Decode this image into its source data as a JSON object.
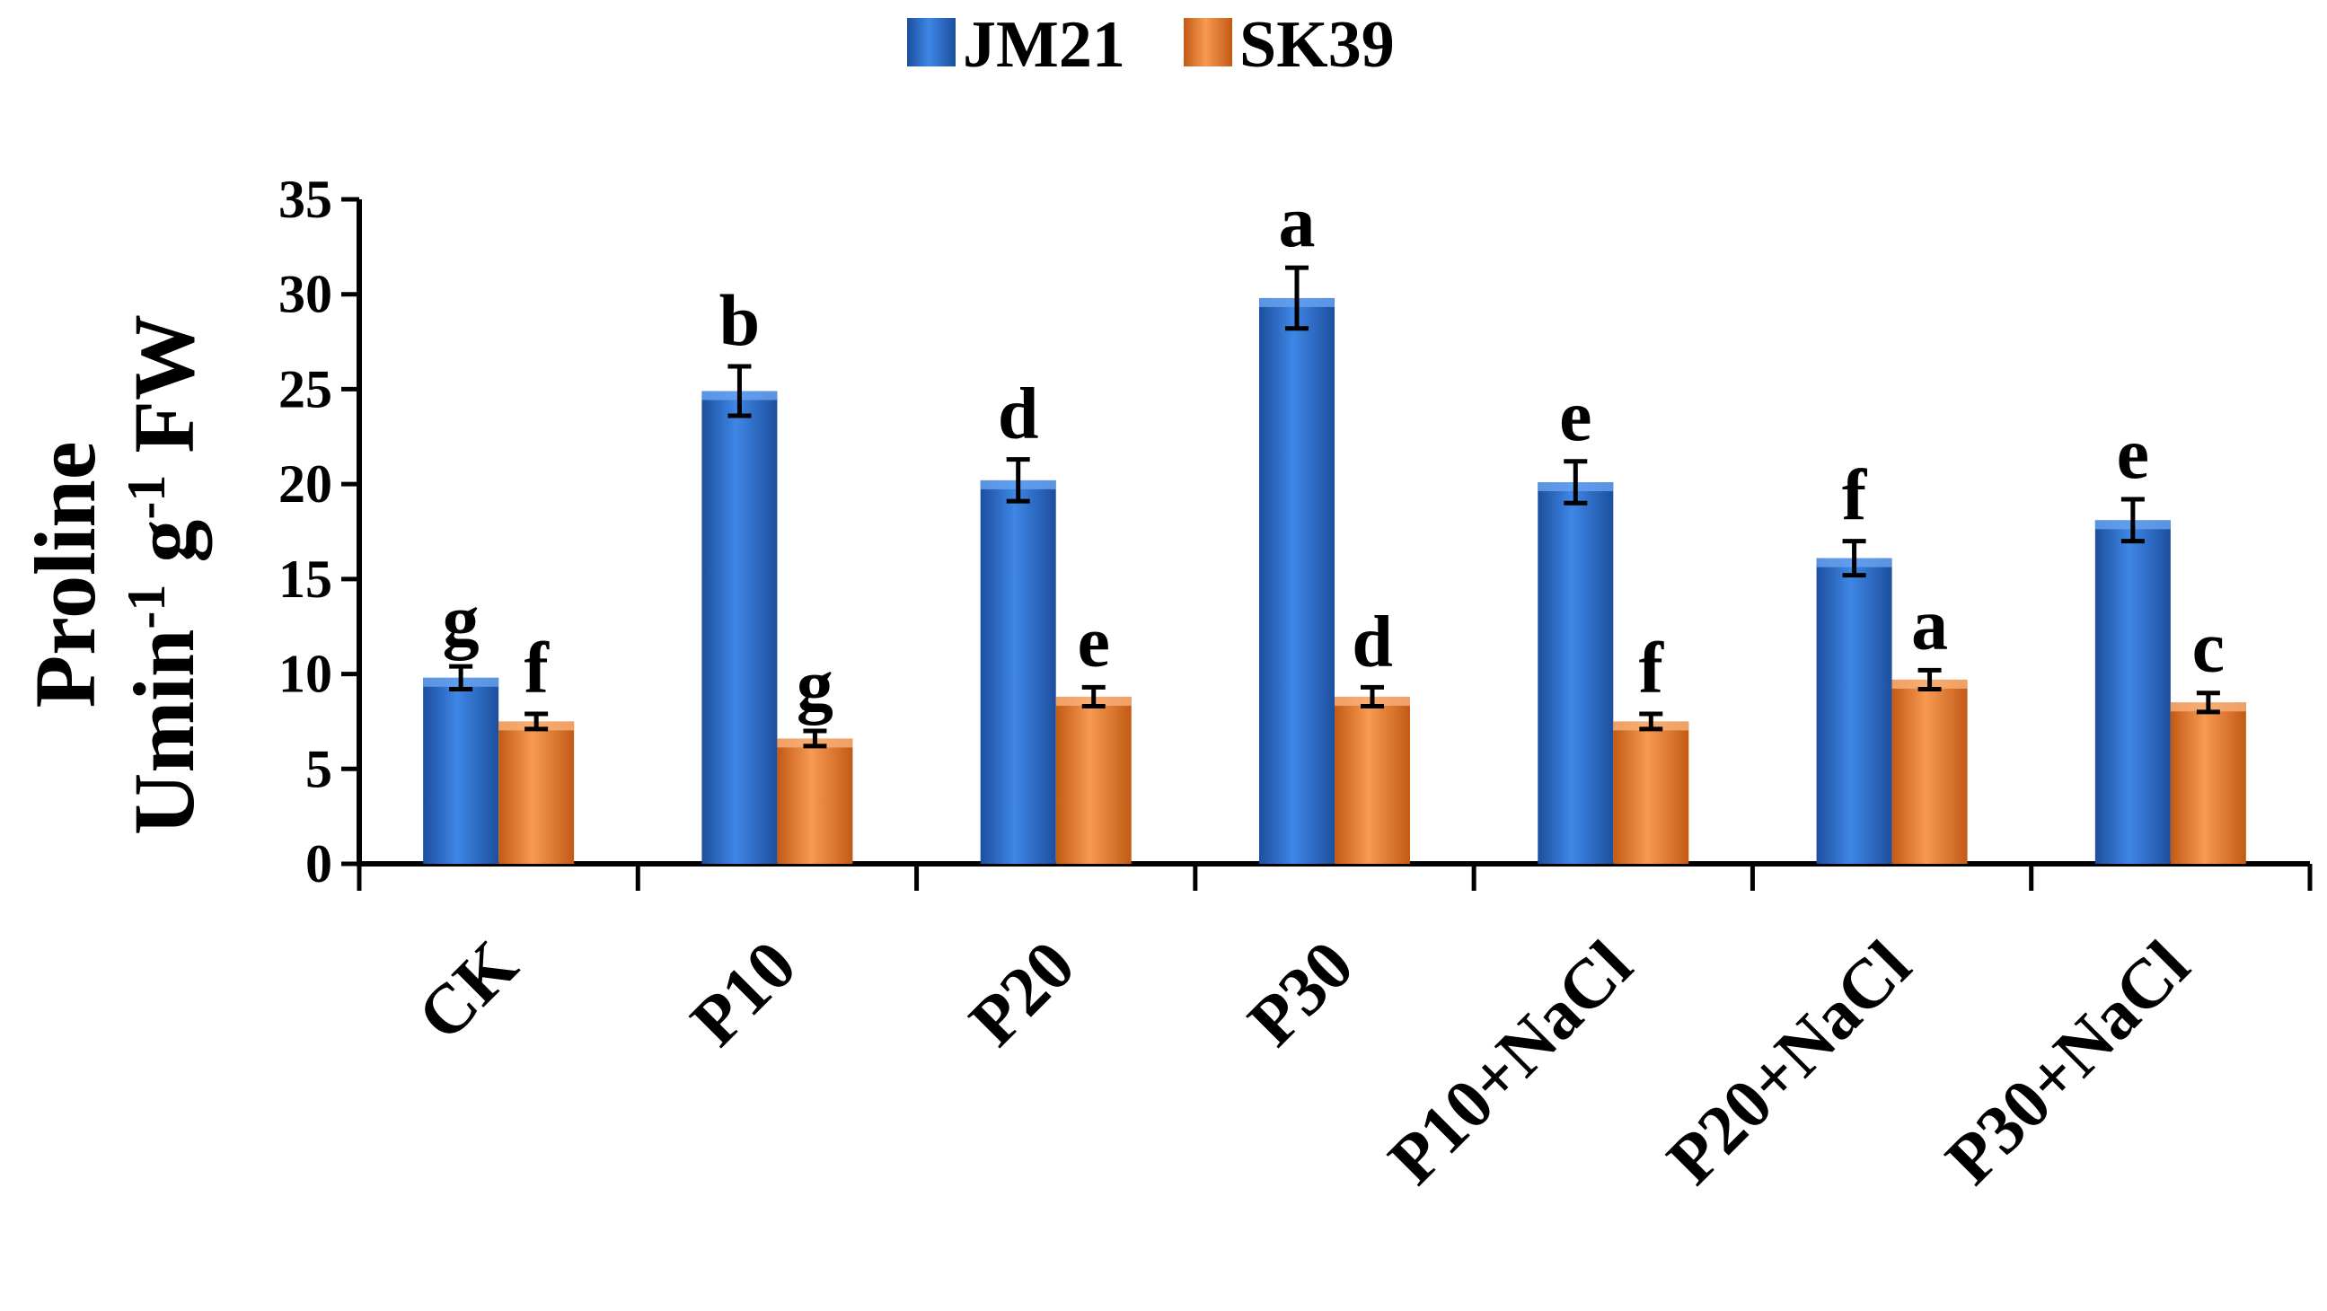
{
  "chart_data": {
    "type": "bar",
    "categories": [
      "CK",
      "P10",
      "P20",
      "P30",
      "P10+NaCl",
      "P20+NaCl",
      "P30+NaCl"
    ],
    "series": [
      {
        "name": "JM21",
        "color": "#2e6fd0",
        "values": [
          9.8,
          24.9,
          20.2,
          29.8,
          20.1,
          16.1,
          18.1
        ],
        "errors": [
          0.6,
          1.3,
          1.1,
          1.6,
          1.1,
          0.9,
          1.1
        ],
        "labels": [
          "g",
          "b",
          "d",
          "a",
          "e",
          "f",
          "e"
        ]
      },
      {
        "name": "SK39",
        "color": "#ed7d31",
        "values": [
          7.5,
          6.6,
          8.8,
          8.8,
          7.5,
          9.7,
          8.5
        ],
        "errors": [
          0.4,
          0.4,
          0.5,
          0.5,
          0.4,
          0.5,
          0.5
        ],
        "labels": [
          "f",
          "g",
          "e",
          "d",
          "f",
          "a",
          "c"
        ]
      }
    ],
    "ylabel_line1": "Proline",
    "ylabel_line2_base": "Umin",
    "ylabel_line2_sup1": "-1",
    "ylabel_line2_mid": " g",
    "ylabel_line2_sup2": "-1",
    "ylabel_line2_end": " FW",
    "ylim": [
      0,
      35
    ],
    "yticks": [
      "0",
      "5",
      "10",
      "15",
      "20",
      "25",
      "30",
      "35"
    ],
    "legend_position": "top-center"
  }
}
